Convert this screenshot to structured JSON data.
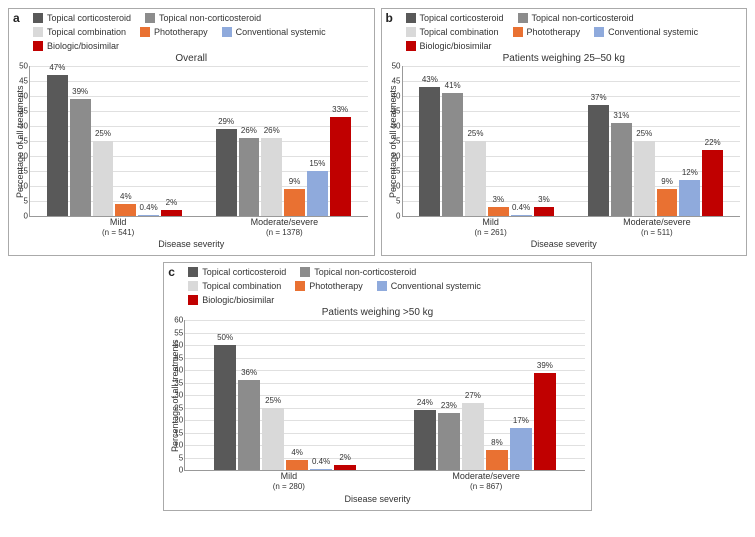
{
  "legend_items": [
    {
      "label": "Topical corticosteroid",
      "color": "#595959"
    },
    {
      "label": "Topical non-corticosteroid",
      "color": "#8c8c8c"
    },
    {
      "label": "Topical combination",
      "color": "#d9d9d9"
    },
    {
      "label": "Phototherapy",
      "color": "#e97132"
    },
    {
      "label": "Conventional systemic",
      "color": "#8faadc"
    },
    {
      "label": "Biologic/biosimilar",
      "color": "#c00000"
    }
  ],
  "ylabel": "Percentage of all treatments",
  "xlabel": "Disease severity",
  "ytick_step": 5,
  "grid_color": "#e0e0e0",
  "panels": {
    "a": {
      "letter": "a",
      "title": "Overall",
      "ymax": 50,
      "groups": [
        {
          "name": "Mild",
          "n": "(n = 541)",
          "values": [
            47,
            39,
            25,
            4,
            0.4,
            2
          ]
        },
        {
          "name": "Moderate/severe",
          "n": "(n = 1378)",
          "values": [
            29,
            26,
            26,
            9,
            15,
            33
          ]
        }
      ]
    },
    "b": {
      "letter": "b",
      "title": "Patients weighing 25–50 kg",
      "ymax": 50,
      "groups": [
        {
          "name": "Mild",
          "n": "(n = 261)",
          "values": [
            43,
            41,
            25,
            3,
            0.4,
            3
          ]
        },
        {
          "name": "Moderate/severe",
          "n": "(n = 511)",
          "values": [
            37,
            31,
            25,
            9,
            12,
            22
          ]
        }
      ]
    },
    "c": {
      "letter": "c",
      "title": "Patients weighing >50 kg",
      "ymax": 60,
      "groups": [
        {
          "name": "Mild",
          "n": "(n = 280)",
          "values": [
            50,
            36,
            25,
            4,
            0.4,
            2
          ]
        },
        {
          "name": "Moderate/severe",
          "n": "(n = 867)",
          "values": [
            24,
            23,
            27,
            8,
            17,
            39
          ]
        }
      ]
    }
  }
}
